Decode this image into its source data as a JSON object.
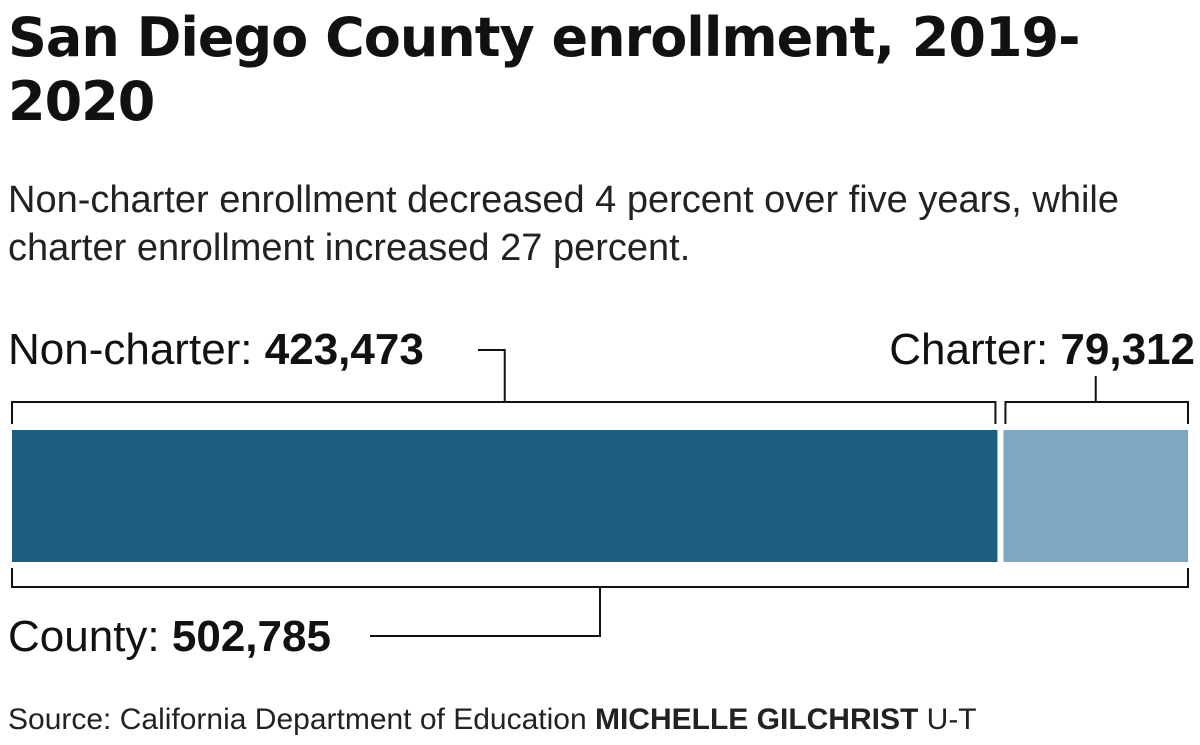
{
  "title": "San Diego County enrollment, 2019-2020",
  "subtitle": "Non-charter enrollment decreased 4 percent over five years, while charter enrollment increased 27 percent.",
  "colors": {
    "non_charter": "#1b5e7e",
    "charter": "#7ea8c2",
    "bracket": "#111111"
  },
  "chart_data": {
    "type": "bar",
    "orientation": "horizontal-stacked",
    "categories": [
      "Non-charter",
      "Charter"
    ],
    "values": [
      423473,
      79312
    ],
    "total": 502785,
    "labels": {
      "non_charter_prefix": "Non-charter: ",
      "non_charter_value": "423,473",
      "charter_prefix": "Charter: ",
      "charter_value": "79,312",
      "total_prefix": "County: ",
      "total_value": "502,785"
    }
  },
  "source": {
    "text": "Source: California Department of Education ",
    "credit": "MICHELLE GILCHRIST",
    "outlet": " U-T"
  }
}
